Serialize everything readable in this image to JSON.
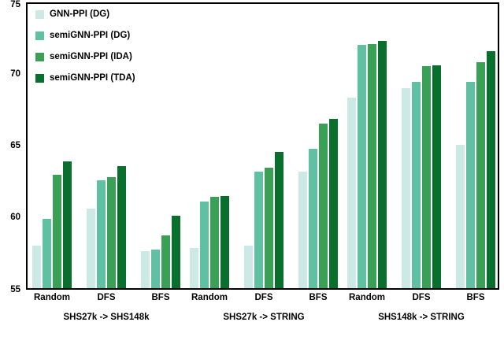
{
  "figure": {
    "description": "Grouped bar chart comparing GNN-PPI and semiGNN-PPI variants across dataset transfer settings",
    "background_color": "#ffffff",
    "axis_color": "#000000"
  },
  "chart_data": {
    "type": "bar",
    "title": "",
    "xlabel": "",
    "ylabel": "",
    "ylim": [
      55,
      75
    ],
    "yticks": [
      55,
      60,
      65,
      70,
      75
    ],
    "grid": false,
    "legend_position": "top-left-inside",
    "series": [
      {
        "name": "GNN-PPI (DG)",
        "color": "#cde9e6"
      },
      {
        "name": "semiGNN-PPI (DG)",
        "color": "#5fc0a2"
      },
      {
        "name": "semiGNN-PPI (IDA)",
        "color": "#3aa056"
      },
      {
        "name": "semiGNN-PPI (TDA)",
        "color": "#08702c"
      }
    ],
    "sections": [
      {
        "label": "SHS27k -> SHS148k",
        "groups": [
          {
            "category": "Random",
            "values": [
              58.0,
              59.9,
              63.0,
              63.9
            ]
          },
          {
            "category": "DFS",
            "values": [
              60.6,
              62.6,
              62.8,
              63.6
            ]
          },
          {
            "category": "BFS",
            "values": [
              57.6,
              57.7,
              58.7,
              60.1
            ]
          }
        ]
      },
      {
        "label": "SHS27k -> STRING",
        "groups": [
          {
            "category": "Random",
            "values": [
              57.8,
              61.1,
              61.4,
              61.5
            ]
          },
          {
            "category": "DFS",
            "values": [
              58.0,
              63.2,
              63.5,
              64.6
            ]
          },
          {
            "category": "BFS",
            "values": [
              63.2,
              64.8,
              66.6,
              66.9
            ]
          }
        ]
      },
      {
        "label": "SHS148k -> STRING",
        "groups": [
          {
            "category": "Random",
            "values": [
              68.4,
              72.1,
              72.2,
              72.4
            ]
          },
          {
            "category": "DFS",
            "values": [
              69.1,
              69.5,
              70.6,
              70.7
            ]
          },
          {
            "category": "BFS",
            "values": [
              65.1,
              69.5,
              70.9,
              71.7
            ]
          }
        ]
      }
    ]
  }
}
